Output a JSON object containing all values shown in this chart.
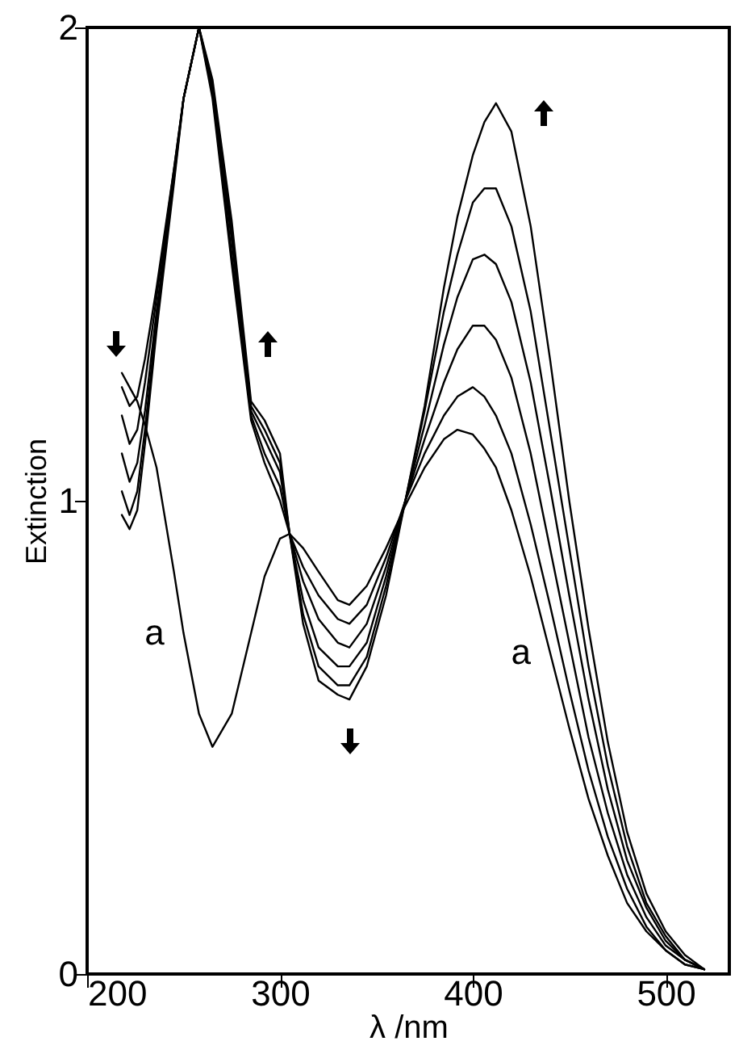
{
  "chart_data": {
    "type": "line",
    "xlabel": "λ /nm",
    "ylabel": "Extinction",
    "x": [
      218,
      222,
      226,
      230,
      236,
      245,
      250,
      258,
      265,
      275,
      285,
      292,
      300,
      305,
      312,
      320,
      330,
      336,
      345,
      355,
      365,
      375,
      385,
      392,
      400,
      406,
      412,
      420,
      430,
      440,
      450,
      460,
      470,
      480,
      490,
      500,
      510,
      520
    ],
    "series": [
      {
        "color": "#000000",
        "values": [
          1.27,
          1.24,
          1.21,
          1.16,
          1.07,
          0.85,
          0.72,
          0.55,
          0.48,
          0.55,
          0.72,
          0.84,
          0.92,
          0.93,
          0.9,
          0.85,
          0.79,
          0.78,
          0.82,
          0.9,
          0.99,
          1.07,
          1.13,
          1.15,
          1.14,
          1.11,
          1.07,
          0.98,
          0.84,
          0.68,
          0.52,
          0.37,
          0.25,
          0.15,
          0.09,
          0.05,
          0.02,
          0.01
        ]
      },
      {
        "color": "#000000",
        "values": [
          1.24,
          1.2,
          1.22,
          1.3,
          1.45,
          1.7,
          1.85,
          2.0,
          1.85,
          1.5,
          1.17,
          1.08,
          1.0,
          0.93,
          0.86,
          0.8,
          0.75,
          0.74,
          0.78,
          0.88,
          1.0,
          1.1,
          1.18,
          1.22,
          1.24,
          1.22,
          1.18,
          1.1,
          0.95,
          0.78,
          0.6,
          0.43,
          0.29,
          0.18,
          0.1,
          0.05,
          0.02,
          0.01
        ]
      },
      {
        "color": "#000000",
        "values": [
          1.18,
          1.12,
          1.15,
          1.25,
          1.43,
          1.7,
          1.85,
          2.0,
          1.86,
          1.52,
          1.18,
          1.1,
          1.03,
          0.93,
          0.83,
          0.75,
          0.7,
          0.69,
          0.74,
          0.86,
          1.0,
          1.13,
          1.25,
          1.32,
          1.37,
          1.37,
          1.34,
          1.26,
          1.1,
          0.9,
          0.7,
          0.5,
          0.34,
          0.21,
          0.12,
          0.06,
          0.03,
          0.01
        ]
      },
      {
        "color": "#000000",
        "values": [
          1.1,
          1.04,
          1.08,
          1.19,
          1.4,
          1.69,
          1.85,
          2.0,
          1.87,
          1.55,
          1.19,
          1.13,
          1.06,
          0.93,
          0.79,
          0.69,
          0.65,
          0.65,
          0.7,
          0.84,
          1.0,
          1.16,
          1.33,
          1.43,
          1.51,
          1.52,
          1.5,
          1.42,
          1.25,
          1.03,
          0.8,
          0.58,
          0.39,
          0.24,
          0.14,
          0.07,
          0.03,
          0.01
        ]
      },
      {
        "color": "#000000",
        "values": [
          1.02,
          0.97,
          1.02,
          1.15,
          1.38,
          1.68,
          1.85,
          2.0,
          1.88,
          1.57,
          1.2,
          1.15,
          1.08,
          0.93,
          0.76,
          0.65,
          0.61,
          0.61,
          0.67,
          0.82,
          1.0,
          1.19,
          1.4,
          1.52,
          1.63,
          1.66,
          1.66,
          1.58,
          1.4,
          1.15,
          0.9,
          0.65,
          0.44,
          0.27,
          0.15,
          0.08,
          0.03,
          0.01
        ]
      },
      {
        "color": "#000000",
        "values": [
          0.97,
          0.94,
          0.98,
          1.12,
          1.36,
          1.67,
          1.85,
          2.0,
          1.89,
          1.59,
          1.21,
          1.17,
          1.1,
          0.93,
          0.74,
          0.62,
          0.59,
          0.58,
          0.65,
          0.8,
          1.0,
          1.2,
          1.45,
          1.6,
          1.73,
          1.8,
          1.84,
          1.78,
          1.58,
          1.3,
          1.0,
          0.73,
          0.49,
          0.3,
          0.17,
          0.09,
          0.04,
          0.01
        ]
      }
    ],
    "annotations": [
      {
        "text": "a",
        "x": 250,
        "y": 0.72
      },
      {
        "text": "a",
        "x": 440,
        "y": 0.68
      }
    ],
    "xlim": [
      200,
      533
    ],
    "ylim": [
      0,
      2
    ],
    "xticks": [
      200,
      300,
      400,
      500
    ],
    "yticks": [
      0,
      1,
      2
    ],
    "grid": false
  }
}
